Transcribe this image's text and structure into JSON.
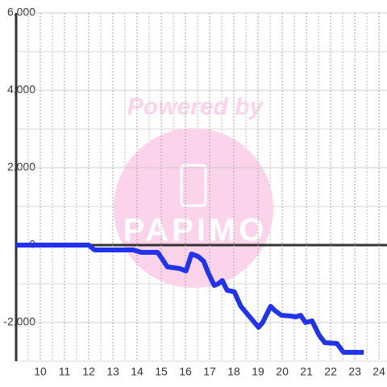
{
  "chart_data": {
    "type": "line",
    "watermark": "Powered by",
    "logo": "PAPIMO",
    "x": [
      9.0,
      12.0,
      12.24,
      13.84,
      14.18,
      14.85,
      15.01,
      15.25,
      15.75,
      16.02,
      16.25,
      16.52,
      16.75,
      16.95,
      17.19,
      17.35,
      17.52,
      17.72,
      18.02,
      18.29,
      19.02,
      19.19,
      19.52,
      19.69,
      19.96,
      20.36,
      20.56,
      20.76,
      20.96,
      21.23,
      21.53,
      21.76,
      22.26,
      22.53,
      23.37
    ],
    "series": [
      {
        "color": "#2233ee",
        "values": [
          0,
          0,
          -125,
          -125,
          -188,
          -188,
          -333,
          -563,
          -604,
          -667,
          -229,
          -292,
          -417,
          -729,
          -1042,
          -1000,
          -917,
          -1167,
          -1208,
          -1583,
          -2125,
          -2000,
          -1583,
          -1688,
          -1813,
          -1833,
          -1854,
          -1813,
          -2000,
          -1958,
          -2333,
          -2521,
          -2542,
          -2771,
          -2771
        ]
      }
    ],
    "xlim": [
      9,
      24.33
    ],
    "xticks": [
      10,
      11,
      12,
      13,
      14,
      15,
      16,
      17,
      18,
      19,
      20,
      21,
      22,
      23,
      24
    ],
    "ylim": [
      -3000,
      6000
    ],
    "yticks": [
      {
        "value": -2000,
        "label": "-2,000"
      },
      0,
      {
        "value": 2000,
        "label": "2,000"
      },
      {
        "value": 4000,
        "label": "4,000"
      },
      {
        "value": 6000,
        "label": "6,000"
      }
    ],
    "grid": true
  }
}
